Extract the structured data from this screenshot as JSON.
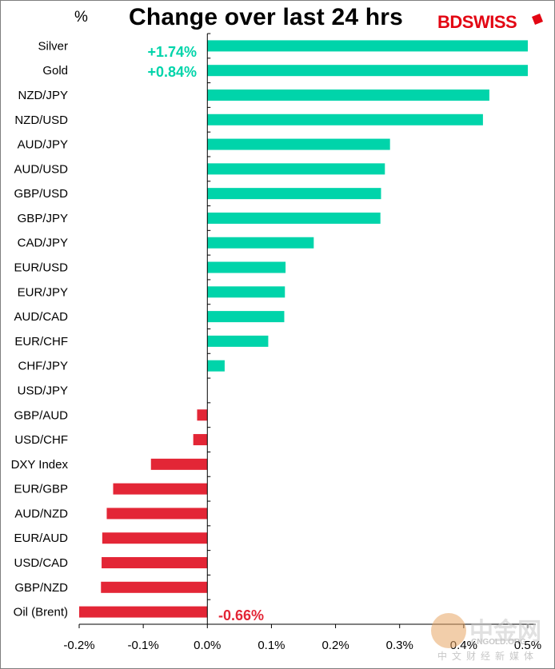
{
  "header": {
    "unit": "%",
    "title": "Change over last 24 hrs",
    "brand": "BDSWISS",
    "brand_first": "BD",
    "brand_second": "SWISS"
  },
  "annotations": {
    "silver_value": "+1.74%",
    "gold_value": "+0.84%",
    "oil_value": "-0.66%"
  },
  "watermark": {
    "name": "中金网",
    "sub": "CNGOLD.ORG",
    "tagline": "中文财经新媒体",
    "logo_color": "#e8a766"
  },
  "chart_data": {
    "type": "bar",
    "orientation": "horizontal",
    "categories": [
      "Silver",
      "Gold",
      "NZD/JPY",
      "NZD/USD",
      "AUD/JPY",
      "AUD/USD",
      "GBP/USD",
      "GBP/JPY",
      "CAD/JPY",
      "EUR/USD",
      "EUR/JPY",
      "AUD/CAD",
      "EUR/CHF",
      "CHF/JPY",
      "USD/JPY",
      "GBP/AUD",
      "USD/CHF",
      "DXY Index",
      "EUR/GBP",
      "AUD/NZD",
      "EUR/AUD",
      "USD/CAD",
      "GBP/NZD",
      "Oil (Brent)"
    ],
    "values": [
      0.5,
      0.5,
      0.44,
      0.43,
      0.285,
      0.277,
      0.271,
      0.27,
      0.166,
      0.122,
      0.121,
      0.12,
      0.095,
      0.027,
      0.0,
      -0.016,
      -0.022,
      -0.088,
      -0.147,
      -0.157,
      -0.164,
      -0.165,
      -0.166,
      -0.2
    ],
    "xlim": [
      -0.2,
      0.5
    ],
    "xticks": [
      -0.2,
      -0.1,
      0.0,
      0.1,
      0.2,
      0.3,
      0.4,
      0.5
    ],
    "xtick_labels": [
      "-0.2%",
      "-0.1%",
      "0.0%",
      "0.1%",
      "0.2%",
      "0.3%",
      "0.4%",
      "0.5%"
    ],
    "positive_color": "#00d4aa",
    "negative_color": "#e32636",
    "grid": false
  }
}
